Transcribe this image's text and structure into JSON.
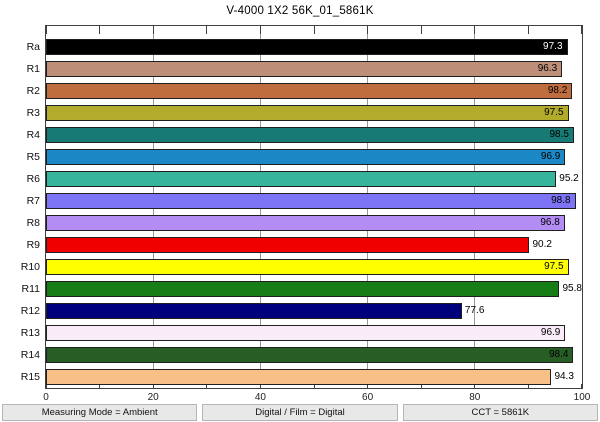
{
  "title": "V-4000 1X2 56K_01_5861K",
  "chart_data": {
    "type": "bar",
    "orientation": "horizontal",
    "title": "V-4000 1X2 56K_01_5861K",
    "xlabel": "",
    "ylabel": "",
    "xlim": [
      0,
      100
    ],
    "x_major_ticks": [
      0,
      20,
      40,
      60,
      80,
      100
    ],
    "x_minor_tick_step": 10,
    "grid": "vertical-lines-at-major-ticks",
    "legend": "none",
    "categories": [
      "Ra",
      "R1",
      "R2",
      "R3",
      "R4",
      "R5",
      "R6",
      "R7",
      "R8",
      "R9",
      "R10",
      "R11",
      "R12",
      "R13",
      "R14",
      "R15"
    ],
    "values": [
      97.3,
      96.3,
      98.2,
      97.5,
      98.5,
      96.9,
      95.2,
      98.8,
      96.8,
      90.2,
      97.5,
      95.8,
      77.6,
      96.9,
      98.4,
      94.3
    ],
    "bar_colors": [
      "#000000",
      "#bf8e79",
      "#bf6c3e",
      "#b3ab2c",
      "#177a74",
      "#1b87c4",
      "#36b59c",
      "#7c74f4",
      "#b38cf4",
      "#f10000",
      "#ffff00",
      "#177d17",
      "#00007d",
      "#f9ebf7",
      "#265e26",
      "#f8c086"
    ],
    "value_text_colors": [
      "#ffffff",
      "#000000",
      "#000000",
      "#000000",
      "#000000",
      "#000000",
      "#000000",
      "#000000",
      "#000000",
      "#000000",
      "#000000",
      "#000000",
      "#000000",
      "#000000",
      "#000000",
      "#000000"
    ]
  },
  "footer": {
    "items": [
      "Measuring Mode = Ambient",
      "Digital / Film = Digital",
      "CCT = 5861K"
    ]
  }
}
